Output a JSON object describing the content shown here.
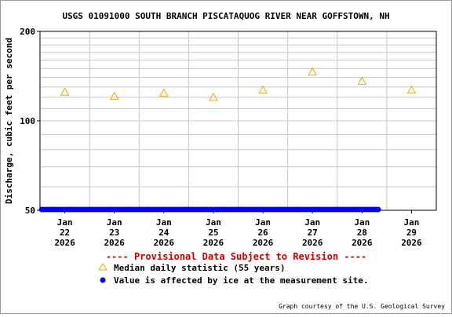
{
  "chart_data": {
    "type": "scatter",
    "title": "USGS 01091000 SOUTH BRANCH PISCATAQUOG RIVER NEAR GOFFSTOWN, NH",
    "ylabel": "Discharge, cubic feet per second",
    "y_scale": "log",
    "ylim": [
      50,
      200
    ],
    "y_ticks": [
      "200",
      "100",
      "50"
    ],
    "x_tick_labels": [
      [
        "Jan",
        "22",
        "2026"
      ],
      [
        "Jan",
        "23",
        "2026"
      ],
      [
        "Jan",
        "24",
        "2026"
      ],
      [
        "Jan",
        "25",
        "2026"
      ],
      [
        "Jan",
        "26",
        "2026"
      ],
      [
        "Jan",
        "27",
        "2026"
      ],
      [
        "Jan",
        "28",
        "2026"
      ],
      [
        "Jan",
        "29",
        "2026"
      ]
    ],
    "grid": true,
    "series": [
      {
        "name": "Median daily statistic (55 years)",
        "marker": "triangle",
        "color": "#e8a800",
        "x": [
          "2026-01-22",
          "2026-01-23",
          "2026-01-24",
          "2026-01-25",
          "2026-01-26",
          "2026-01-27",
          "2026-01-28",
          "2026-01-29"
        ],
        "y": [
          125,
          121,
          124,
          120,
          127,
          146,
          136,
          127
        ]
      },
      {
        "name": "Value is affected by ice at the measurement site.",
        "marker": "dot",
        "color": "#0000ee",
        "x_range": [
          "2026-01-22 00:00",
          "2026-01-28 19:00"
        ],
        "y": 50
      }
    ],
    "provisional_note": "---- Provisional Data Subject to Revision ----",
    "credit": "Graph courtesy of the U.S. Geological Survey"
  }
}
